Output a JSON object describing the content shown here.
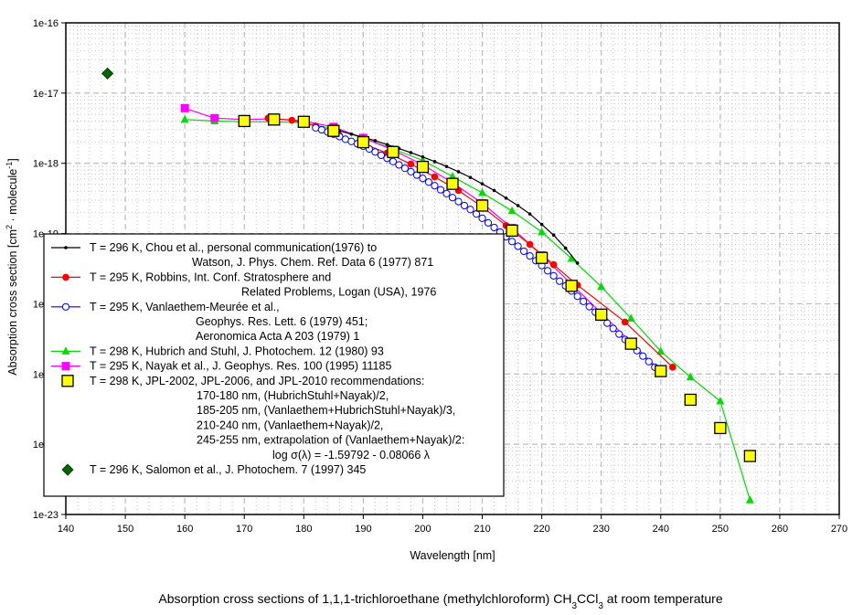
{
  "chart_data": {
    "type": "scatter",
    "title": "Absorption cross sections of 1,1,1-trichloroethane (methylchloroform) CH3CCl3 at room temperature",
    "title_parts": {
      "pre": "Absorption cross sections of 1,1,1-trichloroethane (methylchloroform) CH",
      "sub1": "3",
      "mid": "CCl",
      "sub2": "3",
      "post": " at room temperature"
    },
    "xlabel": "Wavelength [nm]",
    "ylabel": "Absorption cross section [cm2 · molecule-1]",
    "ylabel_parts": {
      "pre": "Absorption cross section [cm",
      "sup1": "2",
      "mid": " · molecule",
      "sup2": "-1",
      "post": "]"
    },
    "xlim": [
      140,
      270
    ],
    "ylim": [
      1e-23,
      1e-16
    ],
    "yscale": "log",
    "grid": true,
    "legend_position": "lower-left",
    "xticks": [
      "140",
      "150",
      "160",
      "170",
      "180",
      "190",
      "200",
      "210",
      "220",
      "230",
      "240",
      "250",
      "260",
      "270"
    ],
    "yticks": [
      "1e-16",
      "1e-17",
      "1e-18",
      "1e-19",
      "1e-20",
      "1e-21",
      "1e-22",
      "1e-23"
    ],
    "series": [
      {
        "name": "Chou",
        "color": "#000000",
        "marker": "dot",
        "legend": [
          "T = 296 K, Chou et al., personal communication(1976) to",
          "Watson, J. Phys. Chem. Ref. Data 6 (1977) 871"
        ],
        "x": [
          186,
          188,
          190,
          192,
          194,
          196,
          198,
          200,
          202,
          204,
          206,
          208,
          210,
          212,
          214,
          216,
          218,
          220,
          222,
          224,
          226
        ],
        "y": [
          2.9e-18,
          2.6e-18,
          2.35e-18,
          2.1e-18,
          1.85e-18,
          1.62e-18,
          1.42e-18,
          1.23e-18,
          1.06e-18,
          9e-19,
          7.6e-19,
          6.3e-19,
          5.1e-19,
          4.1e-19,
          3.2e-19,
          2.5e-19,
          1.9e-19,
          1.35e-19,
          9.5e-20,
          6.2e-20,
          3.8e-20
        ]
      },
      {
        "name": "Robbins",
        "color": "#ff0000",
        "marker": "circle-filled",
        "legend": [
          "T = 295 K, Robbins, Int. Conf. Stratosphere and",
          "Related Problems, Logan (USA), 1976"
        ],
        "x": [
          174,
          178,
          182,
          186,
          190,
          194,
          198,
          202,
          206,
          210,
          214,
          218,
          222,
          226,
          234,
          242
        ],
        "y": [
          4.4e-18,
          4.1e-18,
          3.4e-18,
          2.5e-18,
          1.9e-18,
          1.4e-18,
          9.8e-19,
          6.4e-19,
          4.1e-19,
          2.4e-19,
          1.3e-19,
          7e-20,
          3.6e-20,
          1.85e-20,
          5.5e-21,
          1.25e-21
        ]
      },
      {
        "name": "Vanlaethem-Meuree",
        "color": "#0000ff",
        "marker": "circle-open",
        "legend": [
          "T = 295 K, Vanlaethem-Meurée et al.,",
          "Geophys. Res. Lett. 6 (1979) 451;",
          "Aeronomica Acta A 203 (1979) 1"
        ],
        "x": [
          182,
          183,
          184,
          185,
          186,
          187,
          188,
          189,
          190,
          191,
          192,
          193,
          194,
          195,
          196,
          197,
          198,
          199,
          200,
          201,
          202,
          203,
          204,
          205,
          206,
          207,
          208,
          209,
          210,
          211,
          212,
          213,
          214,
          215,
          216,
          217,
          218,
          219,
          220,
          221,
          222,
          223,
          224,
          225,
          226,
          227,
          228,
          229,
          230,
          231,
          232,
          233,
          234,
          235,
          236,
          237,
          238,
          239,
          240
        ],
        "y": [
          3.2e-18,
          3e-18,
          2.8e-18,
          2.6e-18,
          2.4e-18,
          2.2e-18,
          2.05e-18,
          1.9e-18,
          1.75e-18,
          1.6e-18,
          1.45e-18,
          1.3e-18,
          1.18e-18,
          1.06e-18,
          9.5e-19,
          8.5e-19,
          7.6e-19,
          6.8e-19,
          6.1e-19,
          5.4e-19,
          4.8e-19,
          4.2e-19,
          3.7e-19,
          3.25e-19,
          2.85e-19,
          2.5e-19,
          2.2e-19,
          1.9e-19,
          1.65e-19,
          1.42e-19,
          1.22e-19,
          1.05e-19,
          9e-20,
          7.7e-20,
          6.6e-20,
          5.6e-20,
          4.8e-20,
          4.1e-20,
          3.5e-20,
          2.95e-20,
          2.5e-20,
          2.1e-20,
          1.8e-20,
          1.52e-20,
          1.28e-20,
          1.08e-20,
          9.1e-21,
          7.6e-21,
          6.4e-21,
          5.3e-21,
          4.45e-21,
          3.7e-21,
          3.1e-21,
          2.6e-21,
          2.15e-21,
          1.8e-21,
          1.5e-21,
          1.25e-21,
          1.05e-21
        ]
      },
      {
        "name": "Hubrich and Stuhl",
        "color": "#00dd00",
        "marker": "triangle",
        "legend": [
          "T = 298 K, Hubrich and Stuhl, J. Photochem. 12 (1980) 93"
        ],
        "x": [
          160,
          165,
          170,
          175,
          180,
          185,
          190,
          195,
          200,
          205,
          210,
          215,
          220,
          225,
          230,
          235,
          240,
          245,
          250,
          255
        ],
        "y": [
          4.2e-18,
          4e-18,
          3.9e-18,
          3.9e-18,
          3.8e-18,
          3.1e-18,
          2.3e-18,
          1.6e-18,
          1.1e-18,
          6.5e-19,
          3.8e-19,
          2.1e-19,
          1.05e-19,
          4.4e-20,
          1.75e-20,
          6.2e-21,
          2.1e-21,
          9e-22,
          4.1e-22,
          1.6e-23
        ]
      },
      {
        "name": "Nayak",
        "color": "#ff00ff",
        "marker": "square",
        "legend": [
          "T = 295 K, Nayak et al., J. Geophys. Res. 100 (1995) 11185"
        ],
        "x": [
          160,
          165,
          170,
          175,
          180,
          185,
          190,
          195,
          200,
          205,
          210,
          215,
          220,
          225,
          230,
          235,
          240
        ],
        "y": [
          6.1e-18,
          4.4e-18,
          4.2e-18,
          4.3e-18,
          4e-18,
          3.3e-18,
          2.3e-18,
          1.55e-18,
          9.5e-19,
          5.3e-19,
          2.7e-19,
          1.2e-19,
          4.9e-20,
          1.9e-20,
          7.4e-21,
          2.8e-21,
          1.1e-21
        ]
      },
      {
        "name": "JPL recommendations",
        "color": "#ffff00",
        "marker": "square-large",
        "legend": [
          "T = 298 K, JPL-2002, JPL-2006, and JPL-2010 recommendations:",
          "170-180 nm, (HubrichStuhl+Nayak)/2,",
          "185-205 nm, (Vanlaethem+HubrichStuhl+Nayak)/3,",
          "210-240 nm, (Vanlaethem+Nayak)/2,",
          "245-255 nm, extrapolation of (Vanlaethem+Nayak)/2:",
          "log σ(λ) = -1.59792 - 0.08066 λ"
        ],
        "x": [
          170,
          175,
          180,
          185,
          190,
          195,
          200,
          205,
          210,
          215,
          220,
          225,
          230,
          235,
          240,
          245,
          250,
          255
        ],
        "y": [
          4e-18,
          4.2e-18,
          3.9e-18,
          2.9e-18,
          2e-18,
          1.45e-18,
          8.9e-19,
          5.1e-19,
          2.5e-19,
          1.1e-19,
          4.5e-20,
          1.8e-20,
          7e-21,
          2.7e-21,
          1.1e-21,
          4.3e-22,
          1.7e-22,
          6.8e-23
        ]
      },
      {
        "name": "Salomon",
        "color": "#006600",
        "marker": "diamond",
        "legend": [
          "T = 296 K, Salomon et al., J. Photochem. 7 (1997) 345"
        ],
        "x": [
          147
        ],
        "y": [
          1.9e-17
        ]
      }
    ]
  }
}
